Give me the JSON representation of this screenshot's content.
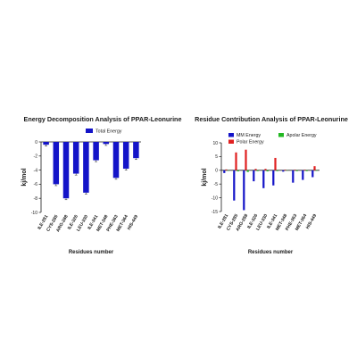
{
  "chart_data": [
    {
      "type": "bar",
      "title": "Energy Decomposition Analysis of  PPAR-Leonurine",
      "xlabel": "Residues number",
      "ylabel": "kj/mol",
      "ylim": [
        -10,
        0
      ],
      "yticks": [
        0,
        -2,
        -4,
        -6,
        -8,
        -10
      ],
      "legend_position": "top-right",
      "categories": [
        "ILE-281",
        "CYS-285",
        "ARG-288",
        "ILE-326",
        "LEU-330",
        "ILE-341",
        "MET-348",
        "PHE-363",
        "MET-364",
        "HIS-449"
      ],
      "series": [
        {
          "name": "Total Energy",
          "color": "#1414c8",
          "values": [
            -0.4,
            -6.0,
            -8.0,
            -4.5,
            -7.2,
            -2.6,
            -0.3,
            -5.1,
            -3.8,
            -2.3
          ]
        }
      ]
    },
    {
      "type": "bar",
      "title": "Residue Contribution Analysis of PPAR-Leonurine",
      "xlabel": "Residues number",
      "ylabel": "kj/mol",
      "ylim": [
        -15,
        10
      ],
      "yticks": [
        10,
        5,
        0,
        -5,
        -10,
        -15
      ],
      "legend_position": "top",
      "categories": [
        "ILE-281",
        "CYS-285",
        "ARG-288",
        "ILE-326",
        "LEU-330",
        "ILE-341",
        "MET-348",
        "PHE-363",
        "MET-364",
        "HIS-449"
      ],
      "series": [
        {
          "name": "MM Energy",
          "color": "#1414c8",
          "values": [
            -1.0,
            -11.0,
            -14.5,
            -4.0,
            -6.5,
            -5.5,
            -0.5,
            -4.5,
            -3.5,
            -2.5
          ]
        },
        {
          "name": "Polar Energy",
          "color": "#e02020",
          "values": [
            0.3,
            6.5,
            7.5,
            0.5,
            0.5,
            4.5,
            0.2,
            0.2,
            0.2,
            1.5
          ]
        },
        {
          "name": "Apolar Energy",
          "color": "#22b822",
          "values": [
            -0.2,
            -0.4,
            -0.6,
            -0.3,
            -0.4,
            -0.3,
            -0.1,
            -0.3,
            -0.3,
            -0.2
          ]
        }
      ]
    }
  ]
}
